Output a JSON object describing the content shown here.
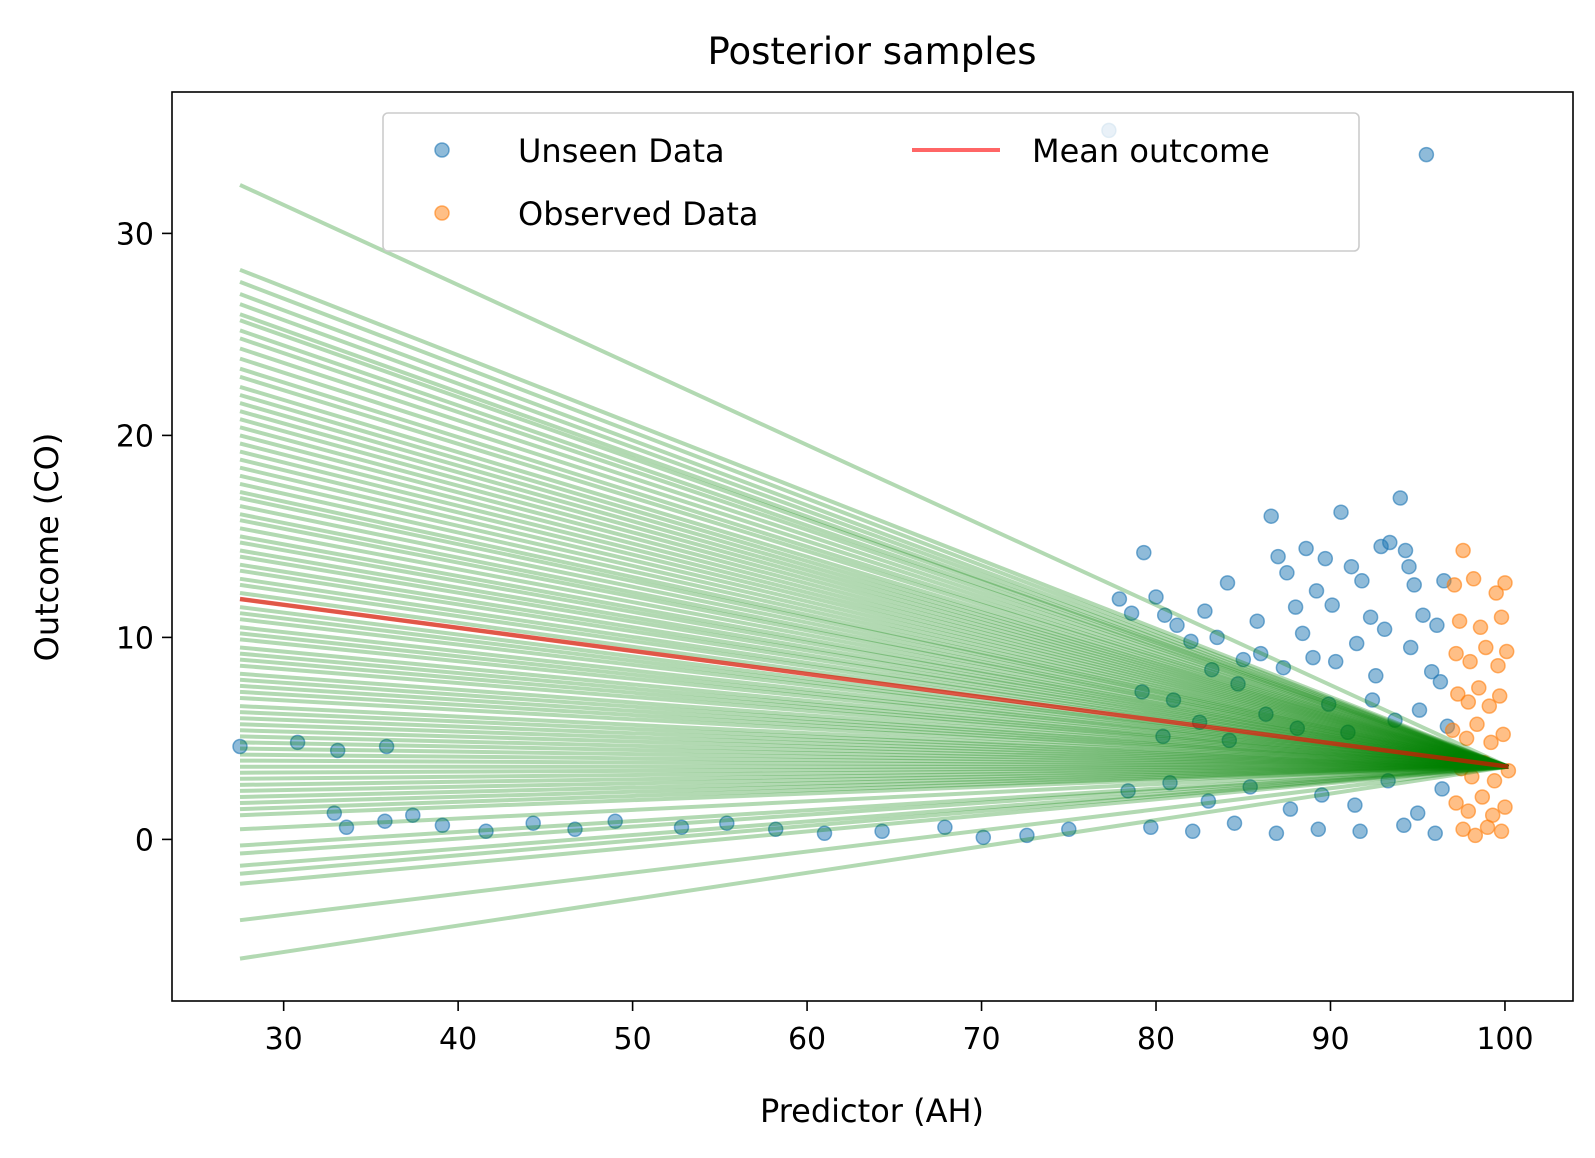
{
  "chart_data": {
    "type": "scatter",
    "title": "Posterior samples",
    "xlabel": "Predictor (AH)",
    "ylabel": "Outcome (CO)",
    "xlim": [
      23.6,
      103.9
    ],
    "ylim": [
      -8.0,
      37.0
    ],
    "xticks": [
      30,
      40,
      50,
      60,
      70,
      80,
      90,
      100
    ],
    "yticks": [
      0,
      10,
      20,
      30
    ],
    "grid": false,
    "legend": {
      "position": "upper-center",
      "columns": 2,
      "entries": [
        {
          "label": "Unseen Data",
          "marker": "circle",
          "color": "#1f77b4"
        },
        {
          "label": "Observed Data",
          "marker": "circle",
          "color": "#ff7f0e"
        },
        {
          "label": "Mean outcome",
          "marker": "line",
          "color": "#ff0000"
        }
      ]
    },
    "colors": {
      "unseen": "#1f77b4",
      "observed": "#ff7f0e",
      "posterior_lines": "#008000",
      "mean_line": "#ff0000"
    },
    "posterior_lines": {
      "x_range": [
        27.5,
        100.2
      ],
      "pivot": [
        100.2,
        3.6
      ],
      "left_end_y": [
        32.4,
        28.2,
        27.6,
        27.0,
        26.5,
        26.0,
        25.7,
        25.2,
        24.8,
        24.3,
        23.8,
        23.3,
        22.9,
        22.4,
        22.0,
        21.6,
        21.2,
        20.8,
        20.4,
        20.0,
        19.6,
        19.2,
        18.8,
        18.4,
        18.0,
        17.6,
        17.2,
        16.9,
        16.5,
        16.1,
        15.8,
        15.4,
        15.0,
        14.7,
        14.3,
        14.0,
        13.6,
        13.3,
        12.9,
        12.6,
        12.2,
        11.9,
        11.5,
        11.2,
        10.9,
        10.5,
        10.2,
        9.9,
        9.5,
        9.2,
        8.9,
        8.6,
        8.2,
        7.9,
        7.6,
        7.3,
        7.0,
        6.6,
        6.3,
        6.0,
        5.7,
        5.4,
        5.1,
        4.8,
        4.5,
        4.2,
        3.9,
        3.6,
        3.3,
        3.0,
        2.7,
        2.4,
        2.1,
        1.8,
        1.5,
        1.2,
        0.5,
        -0.3,
        -0.7,
        -1.3,
        -1.7,
        -2.2,
        -4.0,
        -5.9
      ]
    },
    "mean_outcome": {
      "x": [
        27.5,
        100.2
      ],
      "y": [
        11.9,
        3.6
      ]
    },
    "unseen_data": [
      [
        27.5,
        4.6
      ],
      [
        30.8,
        4.8
      ],
      [
        33.1,
        4.4
      ],
      [
        35.9,
        4.6
      ],
      [
        32.9,
        1.3
      ],
      [
        33.6,
        0.6
      ],
      [
        35.8,
        0.9
      ],
      [
        37.4,
        1.2
      ],
      [
        39.1,
        0.7
      ],
      [
        41.6,
        0.4
      ],
      [
        44.3,
        0.8
      ],
      [
        46.7,
        0.5
      ],
      [
        49.0,
        0.9
      ],
      [
        52.8,
        0.6
      ],
      [
        55.4,
        0.8
      ],
      [
        58.2,
        0.5
      ],
      [
        61.0,
        0.3
      ],
      [
        64.3,
        0.4
      ],
      [
        67.9,
        0.6
      ],
      [
        70.1,
        0.1
      ],
      [
        72.6,
        0.2
      ],
      [
        75.0,
        0.5
      ],
      [
        77.3,
        35.1
      ],
      [
        95.5,
        33.9
      ],
      [
        77.9,
        11.9
      ],
      [
        78.6,
        11.2
      ],
      [
        79.3,
        14.2
      ],
      [
        80.0,
        12.0
      ],
      [
        80.5,
        11.1
      ],
      [
        81.2,
        10.6
      ],
      [
        82.0,
        9.8
      ],
      [
        82.8,
        11.3
      ],
      [
        83.5,
        10.0
      ],
      [
        84.1,
        12.7
      ],
      [
        85.0,
        8.9
      ],
      [
        85.8,
        10.8
      ],
      [
        86.6,
        16.0
      ],
      [
        87.0,
        14.0
      ],
      [
        87.5,
        13.2
      ],
      [
        88.0,
        11.5
      ],
      [
        88.6,
        14.4
      ],
      [
        89.2,
        12.3
      ],
      [
        89.7,
        13.9
      ],
      [
        90.1,
        11.6
      ],
      [
        90.6,
        16.2
      ],
      [
        91.2,
        13.5
      ],
      [
        91.8,
        12.8
      ],
      [
        92.3,
        11.0
      ],
      [
        92.9,
        14.5
      ],
      [
        93.4,
        14.7
      ],
      [
        94.0,
        16.9
      ],
      [
        94.3,
        14.3
      ],
      [
        94.5,
        13.5
      ],
      [
        94.8,
        12.6
      ],
      [
        95.3,
        11.1
      ],
      [
        96.1,
        10.6
      ],
      [
        96.5,
        12.8
      ],
      [
        79.2,
        7.3
      ],
      [
        81.0,
        6.9
      ],
      [
        83.2,
        8.4
      ],
      [
        84.7,
        7.7
      ],
      [
        86.0,
        9.2
      ],
      [
        87.3,
        8.5
      ],
      [
        88.4,
        10.2
      ],
      [
        89.0,
        9.0
      ],
      [
        90.3,
        8.8
      ],
      [
        91.5,
        9.7
      ],
      [
        92.6,
        8.1
      ],
      [
        93.1,
        10.4
      ],
      [
        94.6,
        9.5
      ],
      [
        95.8,
        8.3
      ],
      [
        96.3,
        7.8
      ],
      [
        80.4,
        5.1
      ],
      [
        82.5,
        5.8
      ],
      [
        84.2,
        4.9
      ],
      [
        86.3,
        6.2
      ],
      [
        88.1,
        5.5
      ],
      [
        89.9,
        6.7
      ],
      [
        91.0,
        5.3
      ],
      [
        92.4,
        6.9
      ],
      [
        93.7,
        5.9
      ],
      [
        95.1,
        6.4
      ],
      [
        96.7,
        5.6
      ],
      [
        78.4,
        2.4
      ],
      [
        80.8,
        2.8
      ],
      [
        83.0,
        1.9
      ],
      [
        85.4,
        2.6
      ],
      [
        87.7,
        1.5
      ],
      [
        89.5,
        2.2
      ],
      [
        91.4,
        1.7
      ],
      [
        93.3,
        2.9
      ],
      [
        95.0,
        1.3
      ],
      [
        96.4,
        2.5
      ],
      [
        79.7,
        0.6
      ],
      [
        82.1,
        0.4
      ],
      [
        84.5,
        0.8
      ],
      [
        86.9,
        0.3
      ],
      [
        89.3,
        0.5
      ],
      [
        91.7,
        0.4
      ],
      [
        94.2,
        0.7
      ],
      [
        96.0,
        0.3
      ]
    ],
    "observed_data": [
      [
        97.1,
        12.6
      ],
      [
        97.6,
        14.3
      ],
      [
        98.2,
        12.9
      ],
      [
        99.5,
        12.2
      ],
      [
        100.0,
        12.7
      ],
      [
        97.4,
        10.8
      ],
      [
        98.6,
        10.5
      ],
      [
        99.8,
        11.0
      ],
      [
        97.2,
        9.2
      ],
      [
        98.0,
        8.8
      ],
      [
        98.9,
        9.5
      ],
      [
        99.6,
        8.6
      ],
      [
        100.1,
        9.3
      ],
      [
        97.3,
        7.2
      ],
      [
        97.9,
        6.8
      ],
      [
        98.5,
        7.5
      ],
      [
        99.1,
        6.6
      ],
      [
        99.7,
        7.1
      ],
      [
        97.0,
        5.4
      ],
      [
        97.8,
        5.0
      ],
      [
        98.4,
        5.7
      ],
      [
        99.2,
        4.8
      ],
      [
        99.9,
        5.2
      ],
      [
        97.5,
        3.5
      ],
      [
        98.1,
        3.1
      ],
      [
        98.8,
        3.8
      ],
      [
        99.4,
        2.9
      ],
      [
        100.2,
        3.4
      ],
      [
        97.2,
        1.8
      ],
      [
        97.9,
        1.4
      ],
      [
        98.7,
        2.1
      ],
      [
        99.3,
        1.2
      ],
      [
        100.0,
        1.6
      ],
      [
        97.6,
        0.5
      ],
      [
        98.3,
        0.2
      ],
      [
        99.0,
        0.6
      ],
      [
        99.8,
        0.4
      ]
    ]
  }
}
